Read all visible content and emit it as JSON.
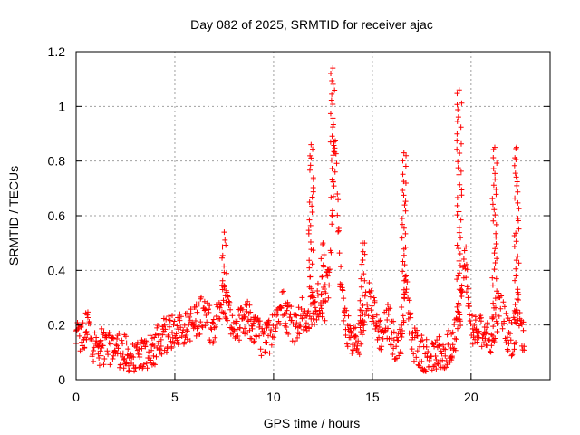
{
  "chart_data": {
    "type": "scatter",
    "title": "Day 082 of 2025, SRMTID for receiver ajac",
    "xlabel": "GPS time / hours",
    "ylabel": "SRMTID / TECUs",
    "xlim": [
      0,
      24
    ],
    "ylim": [
      0,
      1.2
    ],
    "xticks": [
      0,
      5,
      10,
      15,
      20
    ],
    "xtick_labels": [
      "0",
      "5",
      "10",
      "15",
      "20"
    ],
    "yticks": [
      0,
      0.2,
      0.4,
      0.6,
      0.8,
      1.0,
      1.2
    ],
    "ytick_labels": [
      "0",
      "0.2",
      "0.4",
      "0.6",
      "0.8",
      "1",
      "1.2"
    ],
    "grid": true,
    "marker": "plus",
    "marker_color": "#ff0000",
    "series": [
      {
        "name": "SRMTID",
        "x": [
          0.0,
          0.3,
          0.6,
          0.9,
          1.2,
          1.5,
          1.8,
          2.1,
          2.4,
          2.7,
          3.0,
          3.3,
          3.6,
          3.9,
          4.2,
          4.5,
          4.8,
          5.1,
          5.4,
          5.7,
          6.0,
          6.3,
          6.6,
          6.9,
          7.2,
          7.5,
          7.8,
          8.1,
          8.4,
          8.7,
          9.0,
          9.3,
          9.6,
          9.9,
          10.2,
          10.5,
          10.8,
          11.1,
          11.4,
          11.7,
          12.0,
          12.3,
          12.6,
          12.9,
          13.1,
          13.4,
          13.7,
          14.0,
          14.3,
          14.6,
          14.9,
          15.2,
          15.5,
          15.8,
          16.1,
          16.4,
          16.7,
          17.0,
          17.3,
          17.6,
          17.9,
          18.2,
          18.5,
          18.8,
          19.1,
          19.4,
          19.7,
          20.0,
          20.3,
          20.6,
          20.9,
          21.2,
          21.5,
          21.8,
          22.1,
          22.4,
          22.7
        ],
        "y": [
          0.16,
          0.14,
          0.2,
          0.13,
          0.12,
          0.11,
          0.13,
          0.12,
          0.1,
          0.08,
          0.06,
          0.08,
          0.1,
          0.11,
          0.14,
          0.16,
          0.18,
          0.2,
          0.19,
          0.21,
          0.2,
          0.24,
          0.22,
          0.2,
          0.23,
          0.3,
          0.22,
          0.18,
          0.2,
          0.22,
          0.2,
          0.15,
          0.14,
          0.18,
          0.24,
          0.27,
          0.22,
          0.2,
          0.24,
          0.22,
          0.26,
          0.3,
          0.28,
          0.42,
          0.9,
          0.35,
          0.2,
          0.15,
          0.14,
          0.25,
          0.3,
          0.2,
          0.16,
          0.22,
          0.14,
          0.12,
          0.35,
          0.14,
          0.12,
          0.1,
          0.09,
          0.08,
          0.1,
          0.1,
          0.15,
          0.22,
          0.45,
          0.2,
          0.15,
          0.2,
          0.12,
          0.2,
          0.28,
          0.18,
          0.14,
          0.26,
          0.12
        ]
      }
    ],
    "peaks": [
      {
        "x": 7.5,
        "y": 0.54
      },
      {
        "x": 11.9,
        "y": 0.86
      },
      {
        "x": 12.5,
        "y": 0.5
      },
      {
        "x": 13.0,
        "y": 1.14
      },
      {
        "x": 14.5,
        "y": 0.5
      },
      {
        "x": 16.6,
        "y": 0.83
      },
      {
        "x": 19.4,
        "y": 1.06
      },
      {
        "x": 21.2,
        "y": 0.85
      },
      {
        "x": 22.3,
        "y": 0.85
      }
    ]
  }
}
